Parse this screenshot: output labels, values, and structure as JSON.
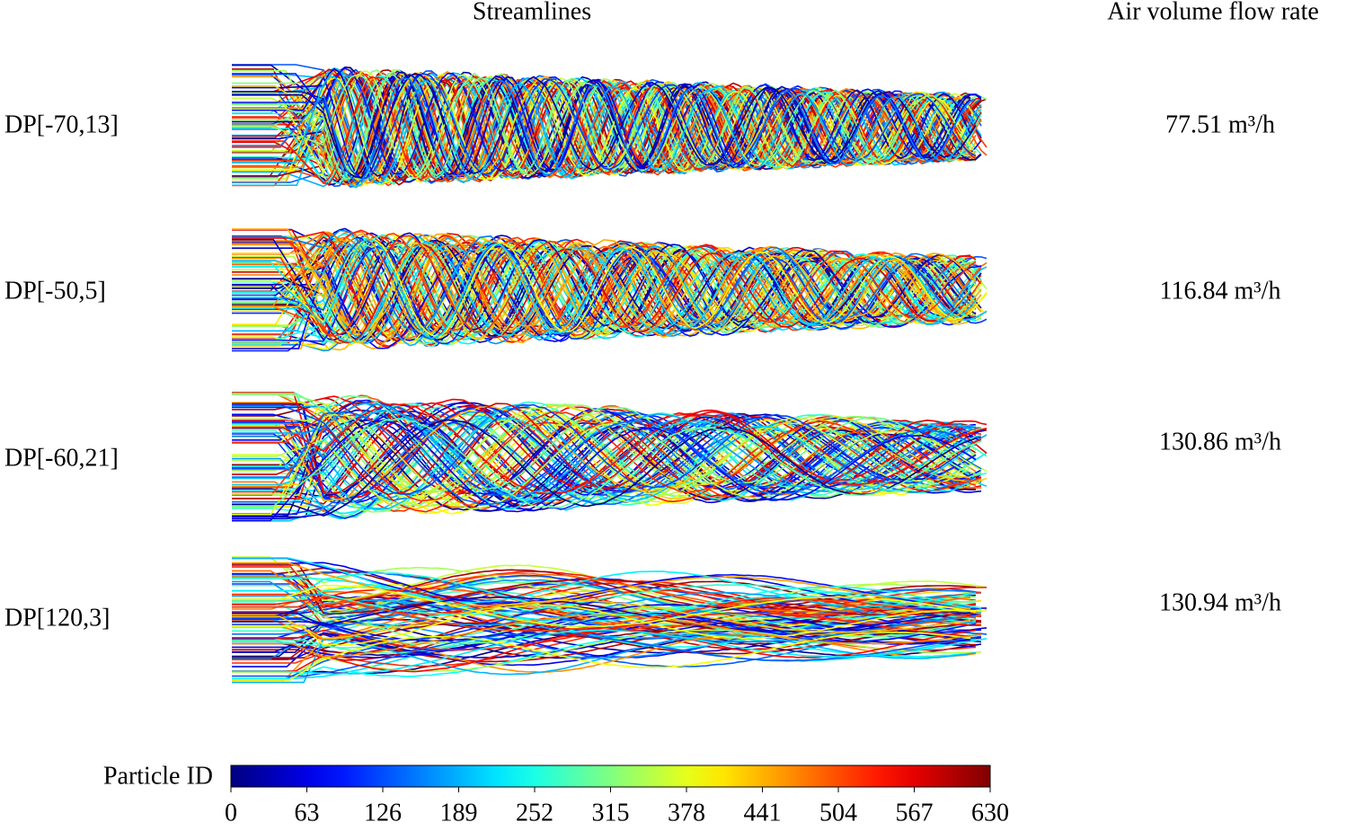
{
  "header": {
    "streamlines": "Streamlines",
    "flow_rate": "Air volume flow rate"
  },
  "rows": [
    {
      "label": "DP[-70,13]",
      "flow": "77.51 m³/h"
    },
    {
      "label": "DP[-50,5]",
      "flow": "116.84 m³/h"
    },
    {
      "label": "DP[-60,21]",
      "flow": "130.86 m³/h"
    },
    {
      "label": "DP[120,3]",
      "flow": "130.94 m³/h"
    }
  ],
  "colorbar": {
    "label": "Particle ID",
    "range": [
      0,
      630
    ],
    "ticks": [
      0,
      63,
      126,
      189,
      252,
      315,
      378,
      441,
      504,
      567,
      630
    ]
  }
}
